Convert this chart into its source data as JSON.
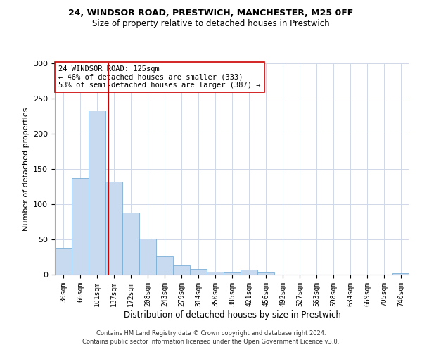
{
  "title1": "24, WINDSOR ROAD, PRESTWICH, MANCHESTER, M25 0FF",
  "title2": "Size of property relative to detached houses in Prestwich",
  "xlabel": "Distribution of detached houses by size in Prestwich",
  "ylabel": "Number of detached properties",
  "categories": [
    "30sqm",
    "66sqm",
    "101sqm",
    "137sqm",
    "172sqm",
    "208sqm",
    "243sqm",
    "279sqm",
    "314sqm",
    "350sqm",
    "385sqm",
    "421sqm",
    "456sqm",
    "492sqm",
    "527sqm",
    "563sqm",
    "598sqm",
    "634sqm",
    "669sqm",
    "705sqm",
    "740sqm"
  ],
  "values": [
    38,
    137,
    233,
    132,
    88,
    51,
    26,
    13,
    8,
    4,
    3,
    7,
    3,
    0,
    0,
    0,
    0,
    0,
    0,
    0,
    2
  ],
  "bar_color": "#c8daef",
  "bar_edge_color": "#7aaed6",
  "vline_color": "#cc0000",
  "annotation_text": "24 WINDSOR ROAD: 125sqm\n← 46% of detached houses are smaller (333)\n53% of semi-detached houses are larger (387) →",
  "annotation_box_color": "#ffffff",
  "annotation_box_edge": "#cc0000",
  "ylim": [
    0,
    300
  ],
  "yticks": [
    0,
    50,
    100,
    150,
    200,
    250,
    300
  ],
  "footer": "Contains HM Land Registry data © Crown copyright and database right 2024.\nContains public sector information licensed under the Open Government Licence v3.0.",
  "background_color": "#ffffff",
  "grid_color": "#d0d8e8"
}
